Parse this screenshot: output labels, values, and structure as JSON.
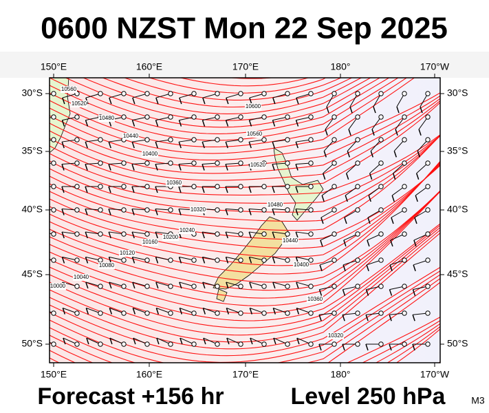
{
  "title": "0600 NZST Mon 22 Sep 2025",
  "map": {
    "lon_labels_top": [
      "150°E",
      "160°E",
      "170°E",
      "180°",
      "170°W"
    ],
    "lon_labels_bottom": [
      "150°E",
      "160°E",
      "170°E",
      "180°",
      "170°W"
    ],
    "lat_labels_left": [
      "30°S",
      "35°S",
      "40°S",
      "45°S",
      "50°S"
    ],
    "lat_labels_right": [
      "30°S",
      "35°S",
      "40°S",
      "45°S",
      "50°S"
    ],
    "contour_labels": [
      "10560",
      "10520",
      "10480",
      "10440",
      "10400",
      "10360",
      "10320",
      "10240",
      "10200",
      "10160",
      "10120",
      "10080",
      "10040",
      "10000",
      "10600",
      "10560",
      "10520",
      "10480",
      "10440",
      "10400",
      "10360",
      "10320"
    ]
  },
  "footer": {
    "forecast": "Forecast +156 hr",
    "level": "Level 250 hPa",
    "model": "M3"
  }
}
